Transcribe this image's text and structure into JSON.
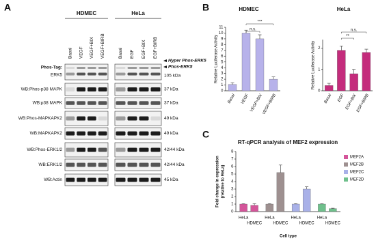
{
  "figure": {
    "panel_labels": [
      "A",
      "B",
      "C"
    ],
    "blot": {
      "groups": [
        {
          "name": "HDMEC",
          "lanes": [
            "Basal",
            "VEGF",
            "VEGF+BIX",
            "VEGF+BIRB"
          ]
        },
        {
          "name": "HeLa",
          "lanes": [
            "Basal",
            "EGF",
            "EGF+BIX",
            "EGF+BIRB"
          ]
        }
      ],
      "rows": [
        {
          "label": [
            "Phos-Tag:",
            "ERK5"
          ],
          "size": [
            "Hyper Phos-ERK5",
            "Phos-ERK5",
            "105 kDa"
          ]
        },
        {
          "label": [
            "WB:Phos-p38 MAPK"
          ],
          "size": [
            "37 kDa"
          ]
        },
        {
          "label": [
            "WB:p38 MAPK"
          ],
          "size": [
            "37 kDa"
          ]
        },
        {
          "label": [
            "WB:Phos-MAPKAPK2"
          ],
          "size": [
            "49 kDa"
          ]
        },
        {
          "label": [
            "WB:MAPKAPK2"
          ],
          "size": [
            "49 kDa"
          ]
        },
        {
          "label": [
            "WB:Phos-ERK1/2"
          ],
          "size": [
            "42/44 kDa"
          ]
        },
        {
          "label": [
            "WB:ERK1/2"
          ],
          "size": [
            "42/44 kDa"
          ]
        },
        {
          "label": [
            "WB:Actin"
          ],
          "size": [
            "45 kDa"
          ]
        }
      ]
    }
  },
  "chart_data": [
    {
      "type": "bar",
      "title": "HDMEC",
      "ylabel": "Relative Luciferase Activity",
      "categories": [
        "Basal",
        "VEGF",
        "VEGF+BIX",
        "VEGF+BIRB"
      ],
      "values": [
        1.1,
        10,
        9,
        2
      ],
      "errors": [
        0.3,
        0.5,
        0.7,
        0.4
      ],
      "color": "#b7b2ea",
      "ylim": [
        0,
        11
      ],
      "yticks": [
        0,
        1,
        2,
        3,
        4,
        5,
        6,
        7,
        8,
        9,
        10,
        11
      ],
      "annotations": [
        "n.s.",
        "***"
      ]
    },
    {
      "type": "bar",
      "title": "HeLa",
      "ylabel": "Relative Luciferase Activity",
      "categories": [
        "Basal",
        "EGF",
        "EGF+BIX",
        "EGF+BIRB"
      ],
      "values": [
        0.25,
        1.9,
        0.8,
        1.8
      ],
      "errors": [
        0.1,
        0.2,
        0.2,
        0.15
      ],
      "color": "#c42c7c",
      "ylim": [
        0,
        2.4
      ],
      "yticks": [
        0,
        1,
        2
      ],
      "annotations": [
        "**",
        "n.s."
      ]
    },
    {
      "type": "bar",
      "title": "RT-qPCR analysis of MEF2 expression",
      "ylabel": [
        "Fold change in expression",
        "(relative to HeLa)"
      ],
      "xlabel": "Cell type",
      "categories": [
        "HeLa",
        "HDMEC",
        "HeLa",
        "HDMEC",
        "HeLa",
        "HDMEC",
        "HeLa",
        "HDMEC"
      ],
      "series": [
        {
          "name": "MEF2A",
          "color": "#d4559a",
          "values": [
            1,
            0.85,
            null,
            null,
            null,
            null,
            null,
            null
          ],
          "errors": [
            0.05,
            0.2,
            null,
            null,
            null,
            null,
            null,
            null
          ]
        },
        {
          "name": "MEF2B",
          "color": "#9e9090",
          "values": [
            null,
            null,
            1,
            5.2,
            null,
            null,
            null,
            null
          ],
          "errors": [
            null,
            null,
            0.05,
            1,
            null,
            null,
            null,
            null
          ]
        },
        {
          "name": "MEF2C",
          "color": "#a9b1e8",
          "values": [
            null,
            null,
            null,
            null,
            1,
            3,
            null,
            null
          ],
          "errors": [
            null,
            null,
            null,
            null,
            0.05,
            0.3,
            null,
            null
          ]
        },
        {
          "name": "MEF2D",
          "color": "#6fc08c",
          "values": [
            null,
            null,
            null,
            null,
            null,
            null,
            1,
            0.4
          ],
          "errors": [
            null,
            null,
            null,
            null,
            null,
            null,
            0.05,
            0.05
          ]
        }
      ],
      "ylim": [
        0,
        8
      ],
      "yticks": [
        0,
        1,
        2,
        3,
        4,
        5,
        6,
        7,
        8
      ],
      "legend": "right"
    }
  ]
}
